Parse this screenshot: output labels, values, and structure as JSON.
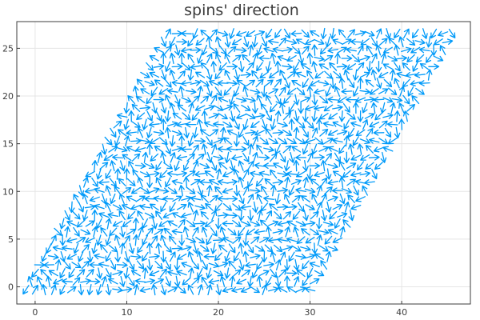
{
  "chart_data": {
    "type": "quiver",
    "title": "spins' direction",
    "xlabel": "",
    "ylabel": "",
    "xlim": [
      -2,
      47.5
    ],
    "ylim": [
      -1.8,
      27.8
    ],
    "xticks": [
      0,
      10,
      20,
      30,
      40
    ],
    "yticks": [
      0,
      5,
      10,
      15,
      20,
      25
    ],
    "grid": true,
    "legend": "none",
    "color": "#009AF9",
    "lattice": {
      "a1": [
        1.0,
        0.0
      ],
      "a2": [
        0.5,
        0.866
      ],
      "n1": 32,
      "n2": 32,
      "origin": [
        -1.0,
        -0.3
      ]
    },
    "vector_length": 1.1,
    "spin_angles_note": "random in-plane directions"
  }
}
